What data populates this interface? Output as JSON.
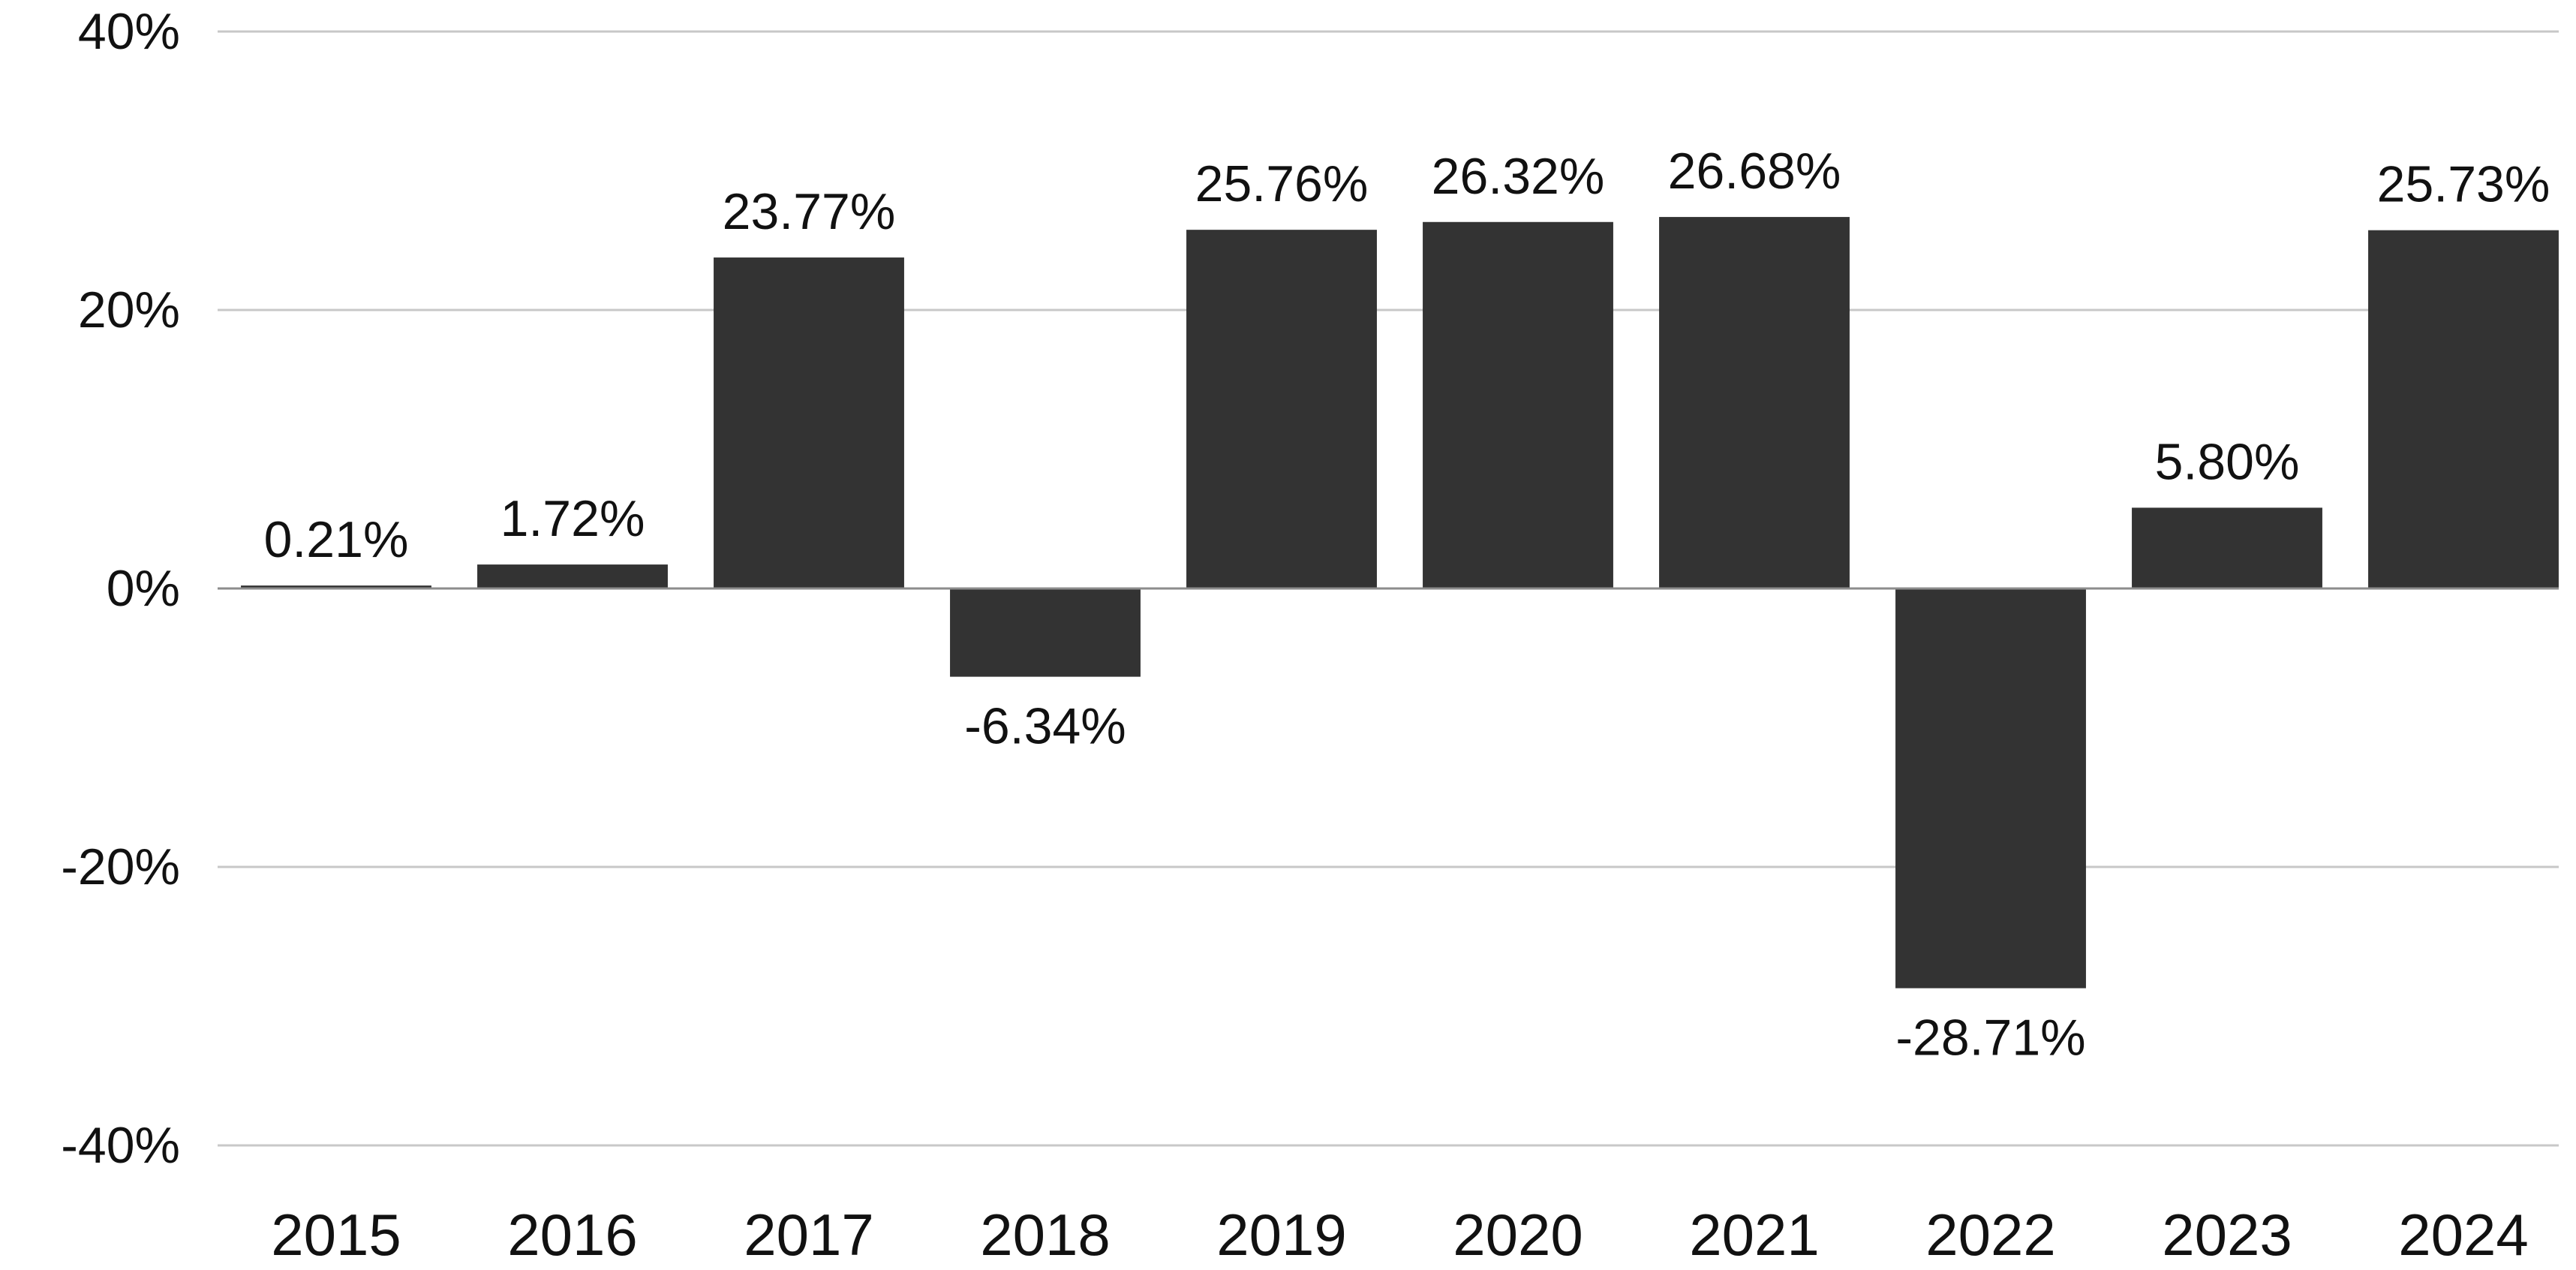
{
  "chart_data": {
    "type": "bar",
    "title": "",
    "xlabel": "",
    "ylabel": "",
    "categories": [
      "2015",
      "2016",
      "2017",
      "2018",
      "2019",
      "2020",
      "2021",
      "2022",
      "2023",
      "2024"
    ],
    "values": [
      0.21,
      1.72,
      23.77,
      -6.34,
      25.76,
      26.32,
      26.68,
      -28.71,
      5.8,
      25.73
    ],
    "data_labels": [
      "0.21%",
      "1.72%",
      "23.77%",
      "-6.34%",
      "25.76%",
      "26.32%",
      "26.68%",
      "-28.71%",
      "5.80%",
      "25.73%"
    ],
    "ylim": [
      -40,
      40
    ],
    "y_ticks": [
      40,
      20,
      0,
      -20,
      -40
    ],
    "y_tick_labels": [
      "40%",
      "20%",
      "0%",
      "-20%",
      "-40%"
    ],
    "grid": true,
    "legend": "none",
    "colors": {
      "bar": "#333333",
      "grid": "#c8c8c8",
      "zero_line": "#8c8c8c",
      "text": "#111111"
    }
  }
}
